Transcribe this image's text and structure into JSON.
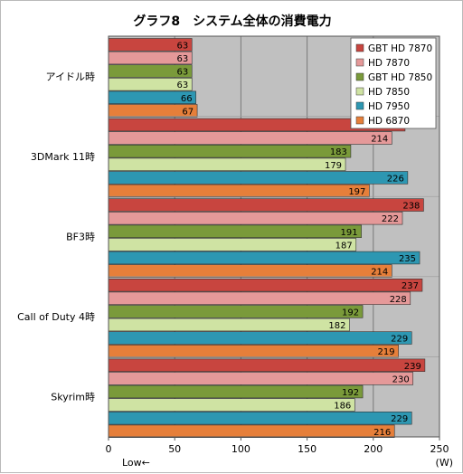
{
  "chart_data": {
    "type": "bar",
    "orientation": "horizontal",
    "title": "グラフ8　システム全体の消費電力",
    "categories": [
      "アイドル時",
      "3DMark 11時",
      "BF3時",
      "Call of Duty 4時",
      "Skyrim時"
    ],
    "series": [
      {
        "name": "GBT HD 7870",
        "color": "#c8453f",
        "values": [
          63,
          224,
          238,
          237,
          239
        ]
      },
      {
        "name": "HD 7870",
        "color": "#e59999",
        "values": [
          63,
          214,
          222,
          228,
          230
        ]
      },
      {
        "name": "GBT HD 7850",
        "color": "#7a9a3a",
        "values": [
          63,
          183,
          191,
          192,
          192
        ]
      },
      {
        "name": "HD 7850",
        "color": "#cfe3a3",
        "values": [
          63,
          179,
          187,
          182,
          186
        ]
      },
      {
        "name": "HD 7950",
        "color": "#2d97b2",
        "values": [
          66,
          226,
          235,
          229,
          229
        ]
      },
      {
        "name": "HD 6870",
        "color": "#e67f3a",
        "values": [
          67,
          197,
          214,
          219,
          216
        ]
      }
    ],
    "xlim": [
      0,
      250
    ],
    "xticks": [
      0,
      50,
      100,
      150,
      200,
      250
    ],
    "xlabel_left": "Low←",
    "xlabel_right": "(W)",
    "legend_position": "top-right",
    "grid": true
  }
}
